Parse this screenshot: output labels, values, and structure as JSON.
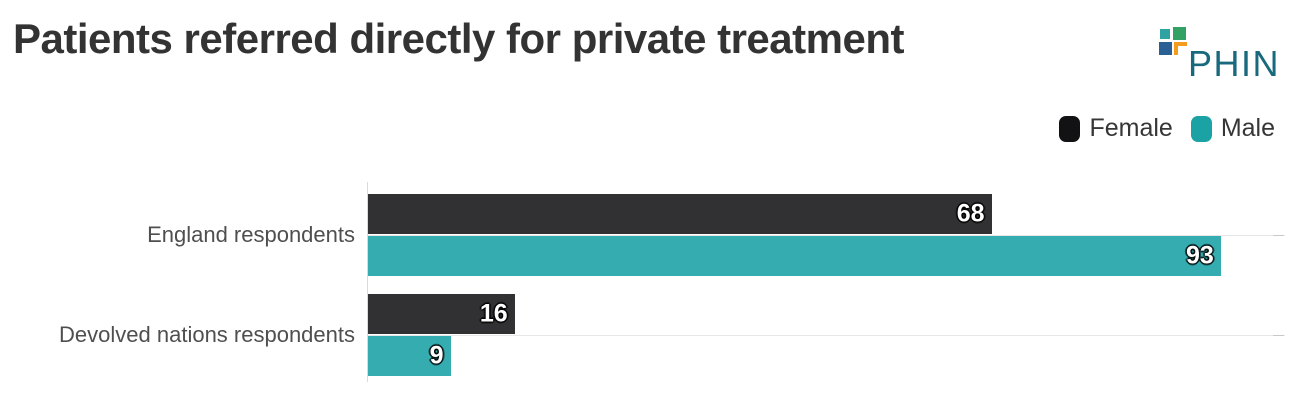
{
  "page": {
    "background": "#ffffff"
  },
  "header": {
    "title": "Patients referred directly for private treatment",
    "logo": {
      "name": "PHIN",
      "text": "PHIN",
      "text_color": "#19697e",
      "squares": {
        "teal": "#2ea3a1",
        "green": "#31a164",
        "blue": "#2b6094",
        "orange": "#f59c1e"
      }
    }
  },
  "legend": {
    "swatch_colors": [
      "#121214",
      "#1ba2a4"
    ]
  },
  "chart_data": {
    "type": "bar",
    "orientation": "horizontal",
    "title": "Patients referred directly for private treatment",
    "categories": [
      "England respondents",
      "Devolved nations respondents"
    ],
    "series": [
      {
        "name": "Female",
        "color": "#313134",
        "values": [
          68,
          16
        ]
      },
      {
        "name": "Male",
        "color": "#35acb0",
        "values": [
          93,
          9
        ]
      }
    ],
    "xlim": [
      0,
      100
    ],
    "xlabel": "",
    "ylabel": "",
    "grid": "category-center-lines",
    "value_labels": "inside-end",
    "legend_position": "top-right",
    "gridline_color": "#e8e8e8",
    "axis_line_color": "#d9dadb"
  }
}
